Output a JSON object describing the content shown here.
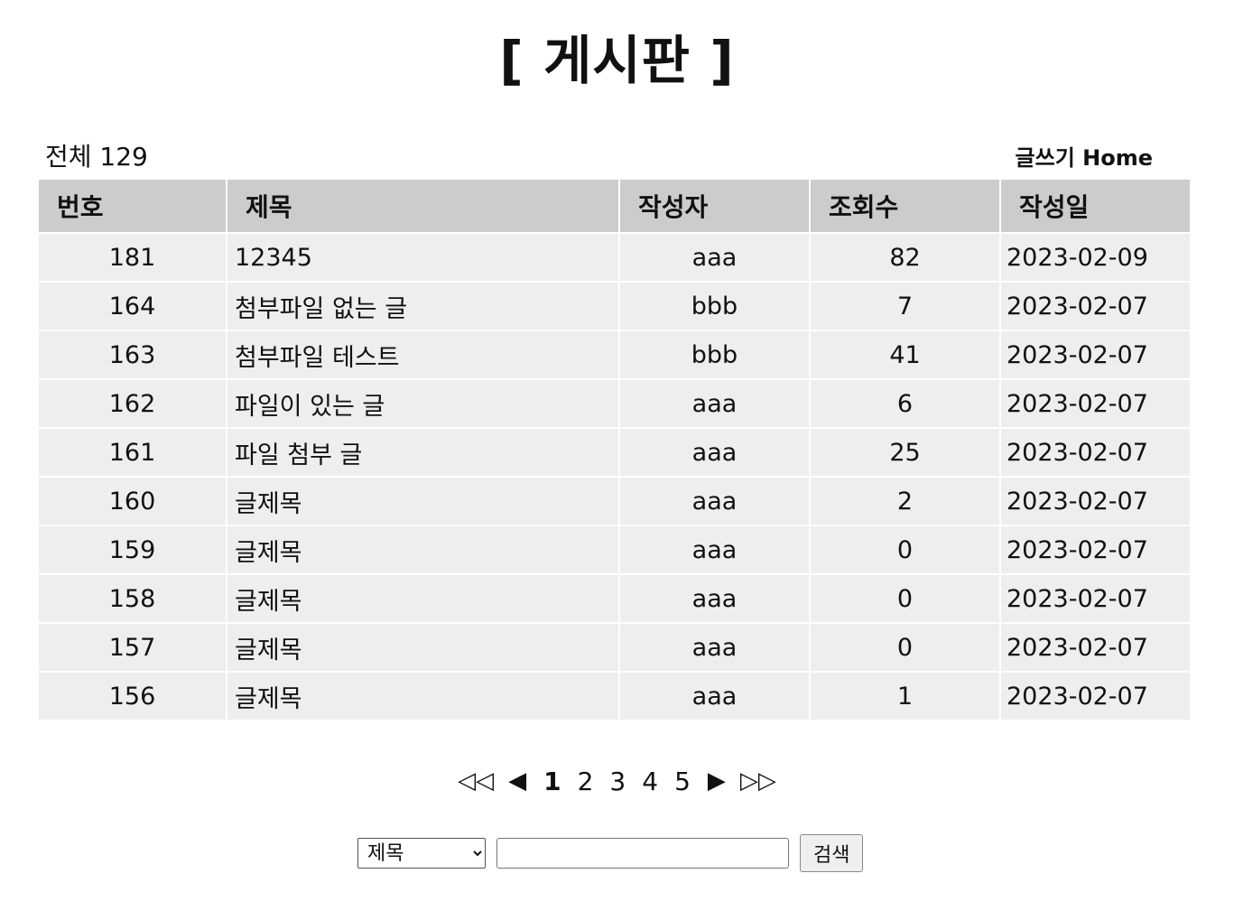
{
  "page": {
    "title": "[ 게시판 ]"
  },
  "summary": {
    "total_label": "전체 129"
  },
  "links": {
    "write": "글쓰기",
    "home": "Home"
  },
  "table": {
    "headers": {
      "num": "번호",
      "title": "제목",
      "writer": "작성자",
      "views": "조회수",
      "date": "작성일"
    },
    "rows": [
      {
        "num": "181",
        "title": "12345",
        "writer": "aaa",
        "views": "82",
        "date": "2023-02-09"
      },
      {
        "num": "164",
        "title": "첨부파일 없는 글",
        "writer": "bbb",
        "views": "7",
        "date": "2023-02-07"
      },
      {
        "num": "163",
        "title": "첨부파일 테스트",
        "writer": "bbb",
        "views": "41",
        "date": "2023-02-07"
      },
      {
        "num": "162",
        "title": "파일이 있는 글",
        "writer": "aaa",
        "views": "6",
        "date": "2023-02-07"
      },
      {
        "num": "161",
        "title": "파일 첨부 글",
        "writer": "aaa",
        "views": "25",
        "date": "2023-02-07"
      },
      {
        "num": "160",
        "title": "글제목",
        "writer": "aaa",
        "views": "2",
        "date": "2023-02-07"
      },
      {
        "num": "159",
        "title": "글제목",
        "writer": "aaa",
        "views": "0",
        "date": "2023-02-07"
      },
      {
        "num": "158",
        "title": "글제목",
        "writer": "aaa",
        "views": "0",
        "date": "2023-02-07"
      },
      {
        "num": "157",
        "title": "글제목",
        "writer": "aaa",
        "views": "0",
        "date": "2023-02-07"
      },
      {
        "num": "156",
        "title": "글제목",
        "writer": "aaa",
        "views": "1",
        "date": "2023-02-07"
      }
    ]
  },
  "pagination": {
    "first": "◁◁",
    "prev": "◀",
    "pages": [
      "1",
      "2",
      "3",
      "4",
      "5"
    ],
    "current": "1",
    "next": "▶",
    "last": "▷▷"
  },
  "search": {
    "selected_option": "제목",
    "query": "",
    "button_label": "검색"
  }
}
